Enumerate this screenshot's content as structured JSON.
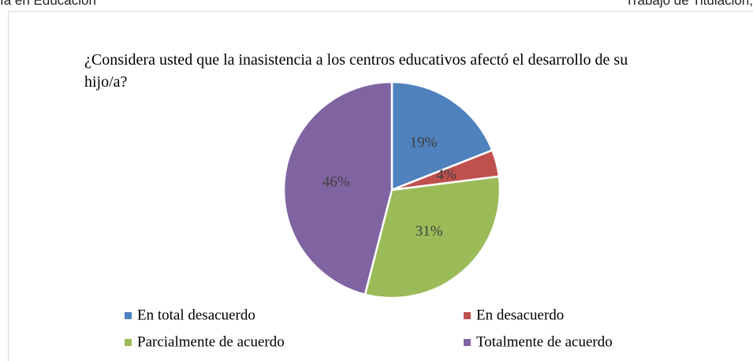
{
  "header": {
    "left": "ía en Educación",
    "right": "Trabajo de Titulación,"
  },
  "chart_data": {
    "type": "pie",
    "title": "¿Considera usted que la inasistencia a los centros educativos afectó el desarrollo de su hijo/a?",
    "categories": [
      "En total desacuerdo",
      "En desacuerdo",
      "Parcialmente de acuerdo",
      "Totalmente de acuerdo"
    ],
    "values": [
      19,
      4,
      31,
      46
    ],
    "value_labels": [
      "19%",
      "4%",
      "31%",
      "46%"
    ],
    "colors": [
      "#4f81bd",
      "#c0504d",
      "#9bbb59",
      "#8064a2"
    ],
    "legend": "bottom"
  }
}
